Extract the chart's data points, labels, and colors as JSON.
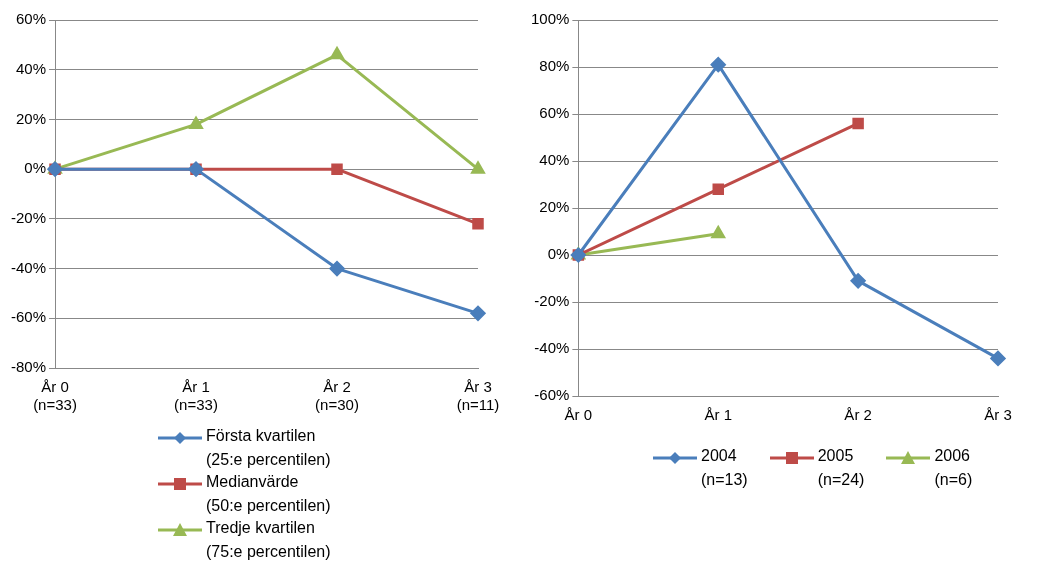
{
  "chart_data": [
    {
      "type": "line",
      "categories": [
        "År 0\n(n=33)",
        "År 1\n(n=33)",
        "År 2\n(n=30)",
        "År 3\n(n=11)"
      ],
      "ylim": [
        -80,
        60
      ],
      "yticks": [
        {
          "value": -80,
          "label": "-80%"
        },
        {
          "value": -60,
          "label": "-60%"
        },
        {
          "value": -40,
          "label": "-40%"
        },
        {
          "value": -20,
          "label": "-20%"
        },
        {
          "value": 0,
          "label": "0%"
        },
        {
          "value": 20,
          "label": "20%"
        },
        {
          "value": 40,
          "label": "40%"
        },
        {
          "value": 60,
          "label": "60%"
        }
      ],
      "grid": "y",
      "legend": "bottom",
      "series": [
        {
          "name": "Första kvartilen\n(25:e percentilen)",
          "color": "#4a7ebb",
          "marker": "diamond",
          "values": [
            0,
            0,
            -40,
            -58
          ]
        },
        {
          "name": "Medianvärde\n(50:e percentilen)",
          "color": "#be4b48",
          "marker": "square",
          "values": [
            0,
            0,
            0,
            -22
          ]
        },
        {
          "name": "Tredje kvartilen\n(75:e percentilen)",
          "color": "#98b954",
          "marker": "triangle",
          "values": [
            0,
            18,
            46,
            0
          ]
        }
      ]
    },
    {
      "type": "line",
      "categories": [
        "År 0",
        "År 1",
        "År 2",
        "År 3"
      ],
      "ylim": [
        -60,
        100
      ],
      "yticks": [
        {
          "value": -60,
          "label": "-60%"
        },
        {
          "value": -40,
          "label": "-40%"
        },
        {
          "value": -20,
          "label": "-20%"
        },
        {
          "value": 0,
          "label": "0%"
        },
        {
          "value": 20,
          "label": "20%"
        },
        {
          "value": 40,
          "label": "40%"
        },
        {
          "value": 60,
          "label": "60%"
        },
        {
          "value": 80,
          "label": "80%"
        },
        {
          "value": 100,
          "label": "100%"
        }
      ],
      "grid": "y",
      "legend": "bottom",
      "series": [
        {
          "name": "2004\n(n=13)",
          "color": "#4a7ebb",
          "marker": "diamond",
          "values": [
            0,
            81,
            -11,
            -44
          ]
        },
        {
          "name": "2005\n(n=24)",
          "color": "#be4b48",
          "marker": "square",
          "values": [
            0,
            28,
            56,
            null
          ]
        },
        {
          "name": "2006\n(n=6)",
          "color": "#98b954",
          "marker": "triangle",
          "values": [
            0,
            9,
            null,
            null
          ]
        }
      ]
    }
  ]
}
